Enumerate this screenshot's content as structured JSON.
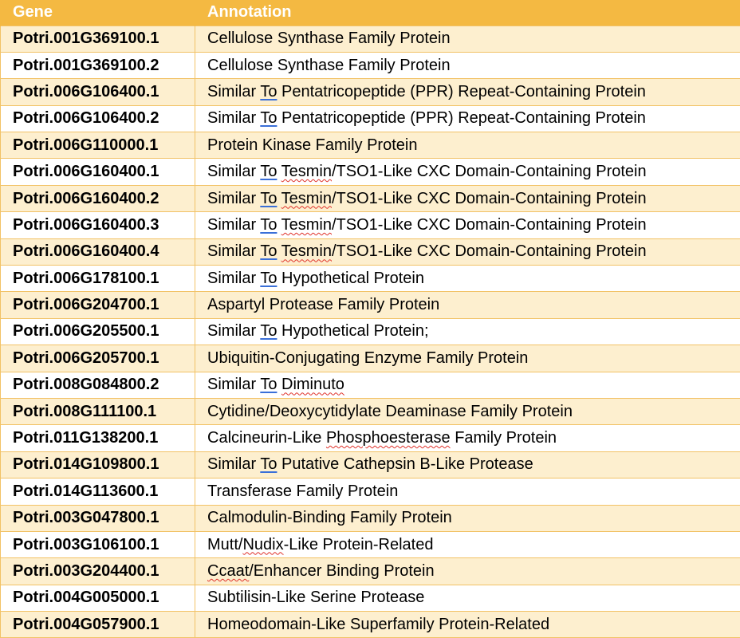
{
  "table": {
    "headers": {
      "gene": "Gene",
      "annotation": "Annotation"
    },
    "rows": [
      {
        "gene": "Potri.001G369100.1",
        "parts": [
          {
            "t": "Cellulose Synthase Family Protein",
            "s": ""
          }
        ]
      },
      {
        "gene": "Potri.001G369100.2",
        "parts": [
          {
            "t": "Cellulose Synthase Family Protein",
            "s": ""
          }
        ]
      },
      {
        "gene": "Potri.006G106400.1",
        "parts": [
          {
            "t": "Similar ",
            "s": ""
          },
          {
            "t": "To",
            "s": "blue"
          },
          {
            "t": " Pentatricopeptide (PPR) Repeat-Containing Protein",
            "s": ""
          }
        ]
      },
      {
        "gene": "Potri.006G106400.2",
        "parts": [
          {
            "t": "Similar ",
            "s": ""
          },
          {
            "t": "To",
            "s": "blue"
          },
          {
            "t": " Pentatricopeptide (PPR) Repeat-Containing Protein",
            "s": ""
          }
        ]
      },
      {
        "gene": "Potri.006G110000.1",
        "parts": [
          {
            "t": "Protein Kinase Family Protein",
            "s": ""
          }
        ]
      },
      {
        "gene": "Potri.006G160400.1",
        "parts": [
          {
            "t": "Similar ",
            "s": ""
          },
          {
            "t": "To",
            "s": "blue"
          },
          {
            "t": " ",
            "s": ""
          },
          {
            "t": "Tesmin",
            "s": "red"
          },
          {
            "t": "/TSO1-Like CXC Domain-Containing Protein",
            "s": ""
          }
        ]
      },
      {
        "gene": "Potri.006G160400.2",
        "parts": [
          {
            "t": "Similar ",
            "s": ""
          },
          {
            "t": "To",
            "s": "blue"
          },
          {
            "t": " ",
            "s": ""
          },
          {
            "t": "Tesmin",
            "s": "red"
          },
          {
            "t": "/TSO1-Like CXC Domain-Containing Protein",
            "s": ""
          }
        ]
      },
      {
        "gene": "Potri.006G160400.3",
        "parts": [
          {
            "t": "Similar ",
            "s": ""
          },
          {
            "t": "To",
            "s": "blue"
          },
          {
            "t": " ",
            "s": ""
          },
          {
            "t": "Tesmin",
            "s": "red"
          },
          {
            "t": "/TSO1-Like CXC Domain-Containing Protein",
            "s": ""
          }
        ]
      },
      {
        "gene": "Potri.006G160400.4",
        "parts": [
          {
            "t": "Similar ",
            "s": ""
          },
          {
            "t": "To",
            "s": "blue"
          },
          {
            "t": " ",
            "s": ""
          },
          {
            "t": "Tesmin",
            "s": "red"
          },
          {
            "t": "/TSO1-Like CXC Domain-Containing Protein",
            "s": ""
          }
        ]
      },
      {
        "gene": "Potri.006G178100.1",
        "parts": [
          {
            "t": "Similar ",
            "s": ""
          },
          {
            "t": "To",
            "s": "blue"
          },
          {
            "t": " Hypothetical Protein",
            "s": ""
          }
        ]
      },
      {
        "gene": "Potri.006G204700.1",
        "parts": [
          {
            "t": "Aspartyl Protease Family Protein",
            "s": ""
          }
        ]
      },
      {
        "gene": "Potri.006G205500.1",
        "parts": [
          {
            "t": "Similar ",
            "s": ""
          },
          {
            "t": "To",
            "s": "blue"
          },
          {
            "t": " Hypothetical Protein;",
            "s": ""
          }
        ]
      },
      {
        "gene": "Potri.006G205700.1",
        "parts": [
          {
            "t": "Ubiquitin-Conjugating Enzyme Family Protein",
            "s": ""
          }
        ]
      },
      {
        "gene": "Potri.008G084800.2",
        "parts": [
          {
            "t": "Similar ",
            "s": ""
          },
          {
            "t": "To",
            "s": "blue"
          },
          {
            "t": " ",
            "s": ""
          },
          {
            "t": "Diminuto",
            "s": "red"
          }
        ]
      },
      {
        "gene": "Potri.008G111100.1",
        "parts": [
          {
            "t": "Cytidine/Deoxycytidylate Deaminase Family Protein",
            "s": ""
          }
        ]
      },
      {
        "gene": "Potri.011G138200.1",
        "parts": [
          {
            "t": "Calcineurin-Like ",
            "s": ""
          },
          {
            "t": "Phosphoesterase",
            "s": "red"
          },
          {
            "t": " Family Protein",
            "s": ""
          }
        ]
      },
      {
        "gene": "Potri.014G109800.1",
        "parts": [
          {
            "t": "Similar ",
            "s": ""
          },
          {
            "t": "To",
            "s": "blue"
          },
          {
            "t": " Putative Cathepsin B-Like Protease",
            "s": ""
          }
        ]
      },
      {
        "gene": "Potri.014G113600.1",
        "parts": [
          {
            "t": "Transferase Family Protein",
            "s": ""
          }
        ]
      },
      {
        "gene": "Potri.003G047800.1",
        "parts": [
          {
            "t": "Calmodulin-Binding Family Protein",
            "s": ""
          }
        ]
      },
      {
        "gene": "Potri.003G106100.1",
        "parts": [
          {
            "t": "Mutt/",
            "s": ""
          },
          {
            "t": "Nudix",
            "s": "red"
          },
          {
            "t": "-Like Protein-Related",
            "s": ""
          }
        ]
      },
      {
        "gene": "Potri.003G204400.1",
        "parts": [
          {
            "t": "Ccaat",
            "s": "red"
          },
          {
            "t": "/Enhancer Binding Protein",
            "s": ""
          }
        ]
      },
      {
        "gene": "Potri.004G005000.1",
        "parts": [
          {
            "t": "Subtilisin-Like Serine Protease",
            "s": ""
          }
        ]
      },
      {
        "gene": "Potri.004G057900.1",
        "parts": [
          {
            "t": "Homeodomain-Like Superfamily Protein-Related",
            "s": ""
          }
        ]
      }
    ]
  },
  "colors": {
    "header_bg": "#f4b942",
    "row_shaded_bg": "#fdefcf",
    "grid_line": "#f2c266",
    "spellcheck_grammar": "#3a6fd8",
    "spellcheck_spelling": "#e0322b"
  }
}
